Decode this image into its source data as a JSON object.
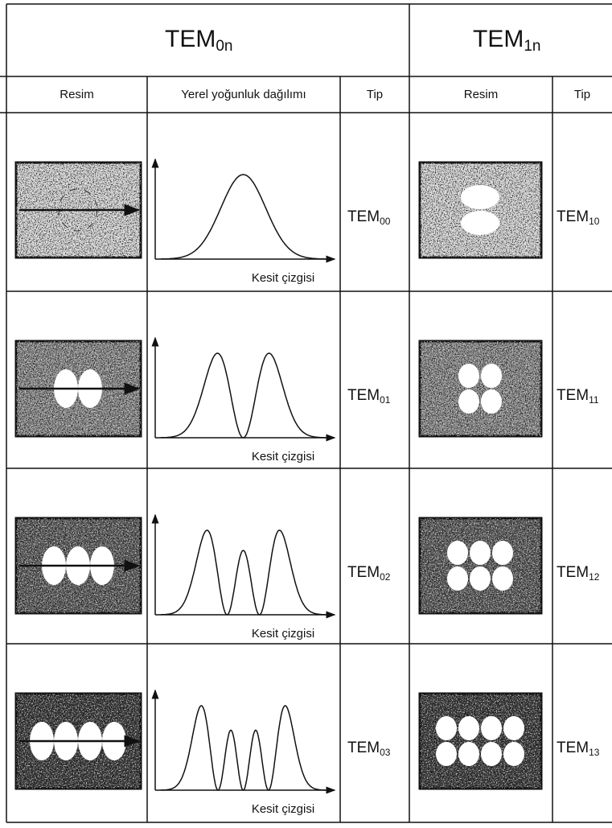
{
  "header": {
    "groups": [
      {
        "base": "TEM",
        "sub": "0n"
      },
      {
        "base": "TEM",
        "sub": "1n"
      }
    ],
    "columns": [
      "Resim",
      "Yerel yoğunluk dağılımı",
      "Tip",
      "Resim",
      "Tip"
    ]
  },
  "rows": [
    {
      "left_type": {
        "base": "TEM",
        "sub": "00"
      },
      "axis_label": "Kesit çizgisi",
      "right_type": {
        "base": "TEM",
        "sub": "10"
      }
    },
    {
      "left_type": {
        "base": "TEM",
        "sub": "01"
      },
      "axis_label": "Kesit çizgisi",
      "right_type": {
        "base": "TEM",
        "sub": "11"
      }
    },
    {
      "left_type": {
        "base": "TEM",
        "sub": "02"
      },
      "axis_label": "Kesit çizgisi",
      "right_type": {
        "base": "TEM",
        "sub": "12"
      }
    },
    {
      "left_type": {
        "base": "TEM",
        "sub": "03"
      },
      "axis_label": "Kesit çizgisi",
      "right_type": {
        "base": "TEM",
        "sub": "13"
      }
    }
  ]
}
